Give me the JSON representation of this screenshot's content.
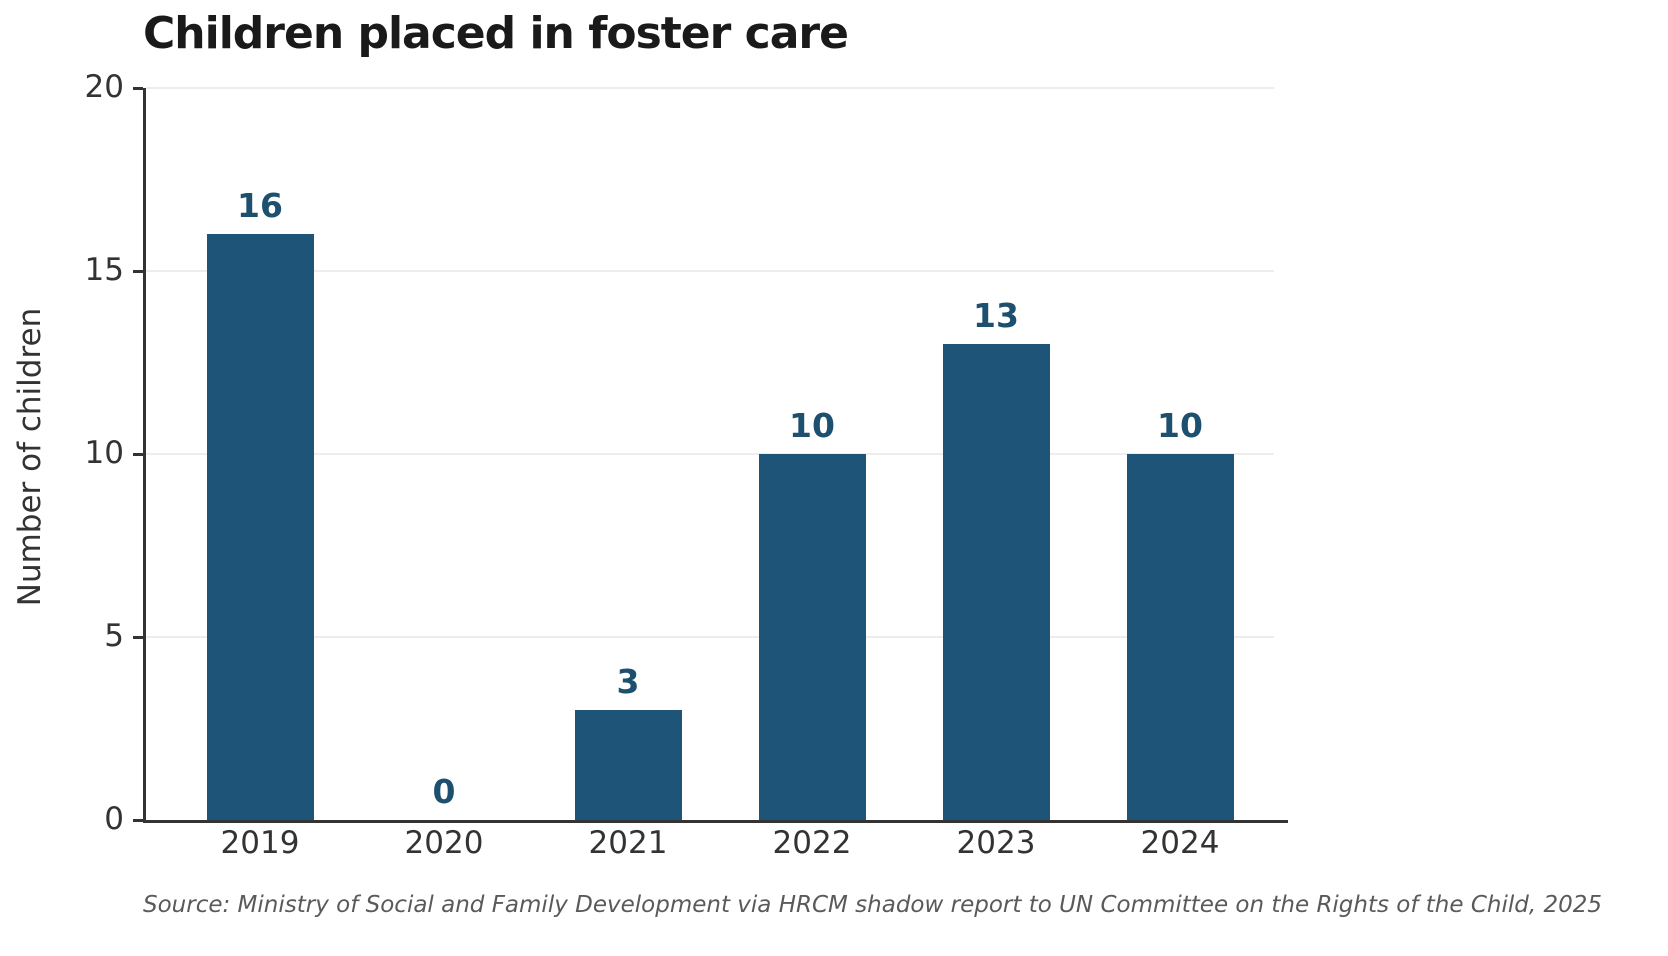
{
  "chart_data": {
    "type": "bar",
    "title": "Children placed in foster care",
    "ylabel": "Number of children",
    "xlabel": "",
    "categories": [
      "2019",
      "2020",
      "2021",
      "2022",
      "2023",
      "2024"
    ],
    "values": [
      16,
      0,
      3,
      10,
      13,
      10
    ],
    "value_labels": [
      "16",
      "0",
      "3",
      "10",
      "13",
      "10"
    ],
    "yticks": [
      0,
      5,
      10,
      15,
      20
    ],
    "ylim": [
      0,
      20
    ],
    "grid": "horizontal",
    "legend_position": "none",
    "colors": {
      "bar": "#1e5477",
      "value_label": "#1d4f6f",
      "axis": "#333333",
      "tick_label": "#333333",
      "title": "#1a1a1a",
      "gridline": "#ededed",
      "source": "#5a5a5a"
    },
    "source_note": "Source: Ministry of Social and Family Development via HRCM shadow report to UN Committee on the Rights of the Child, 2025"
  }
}
